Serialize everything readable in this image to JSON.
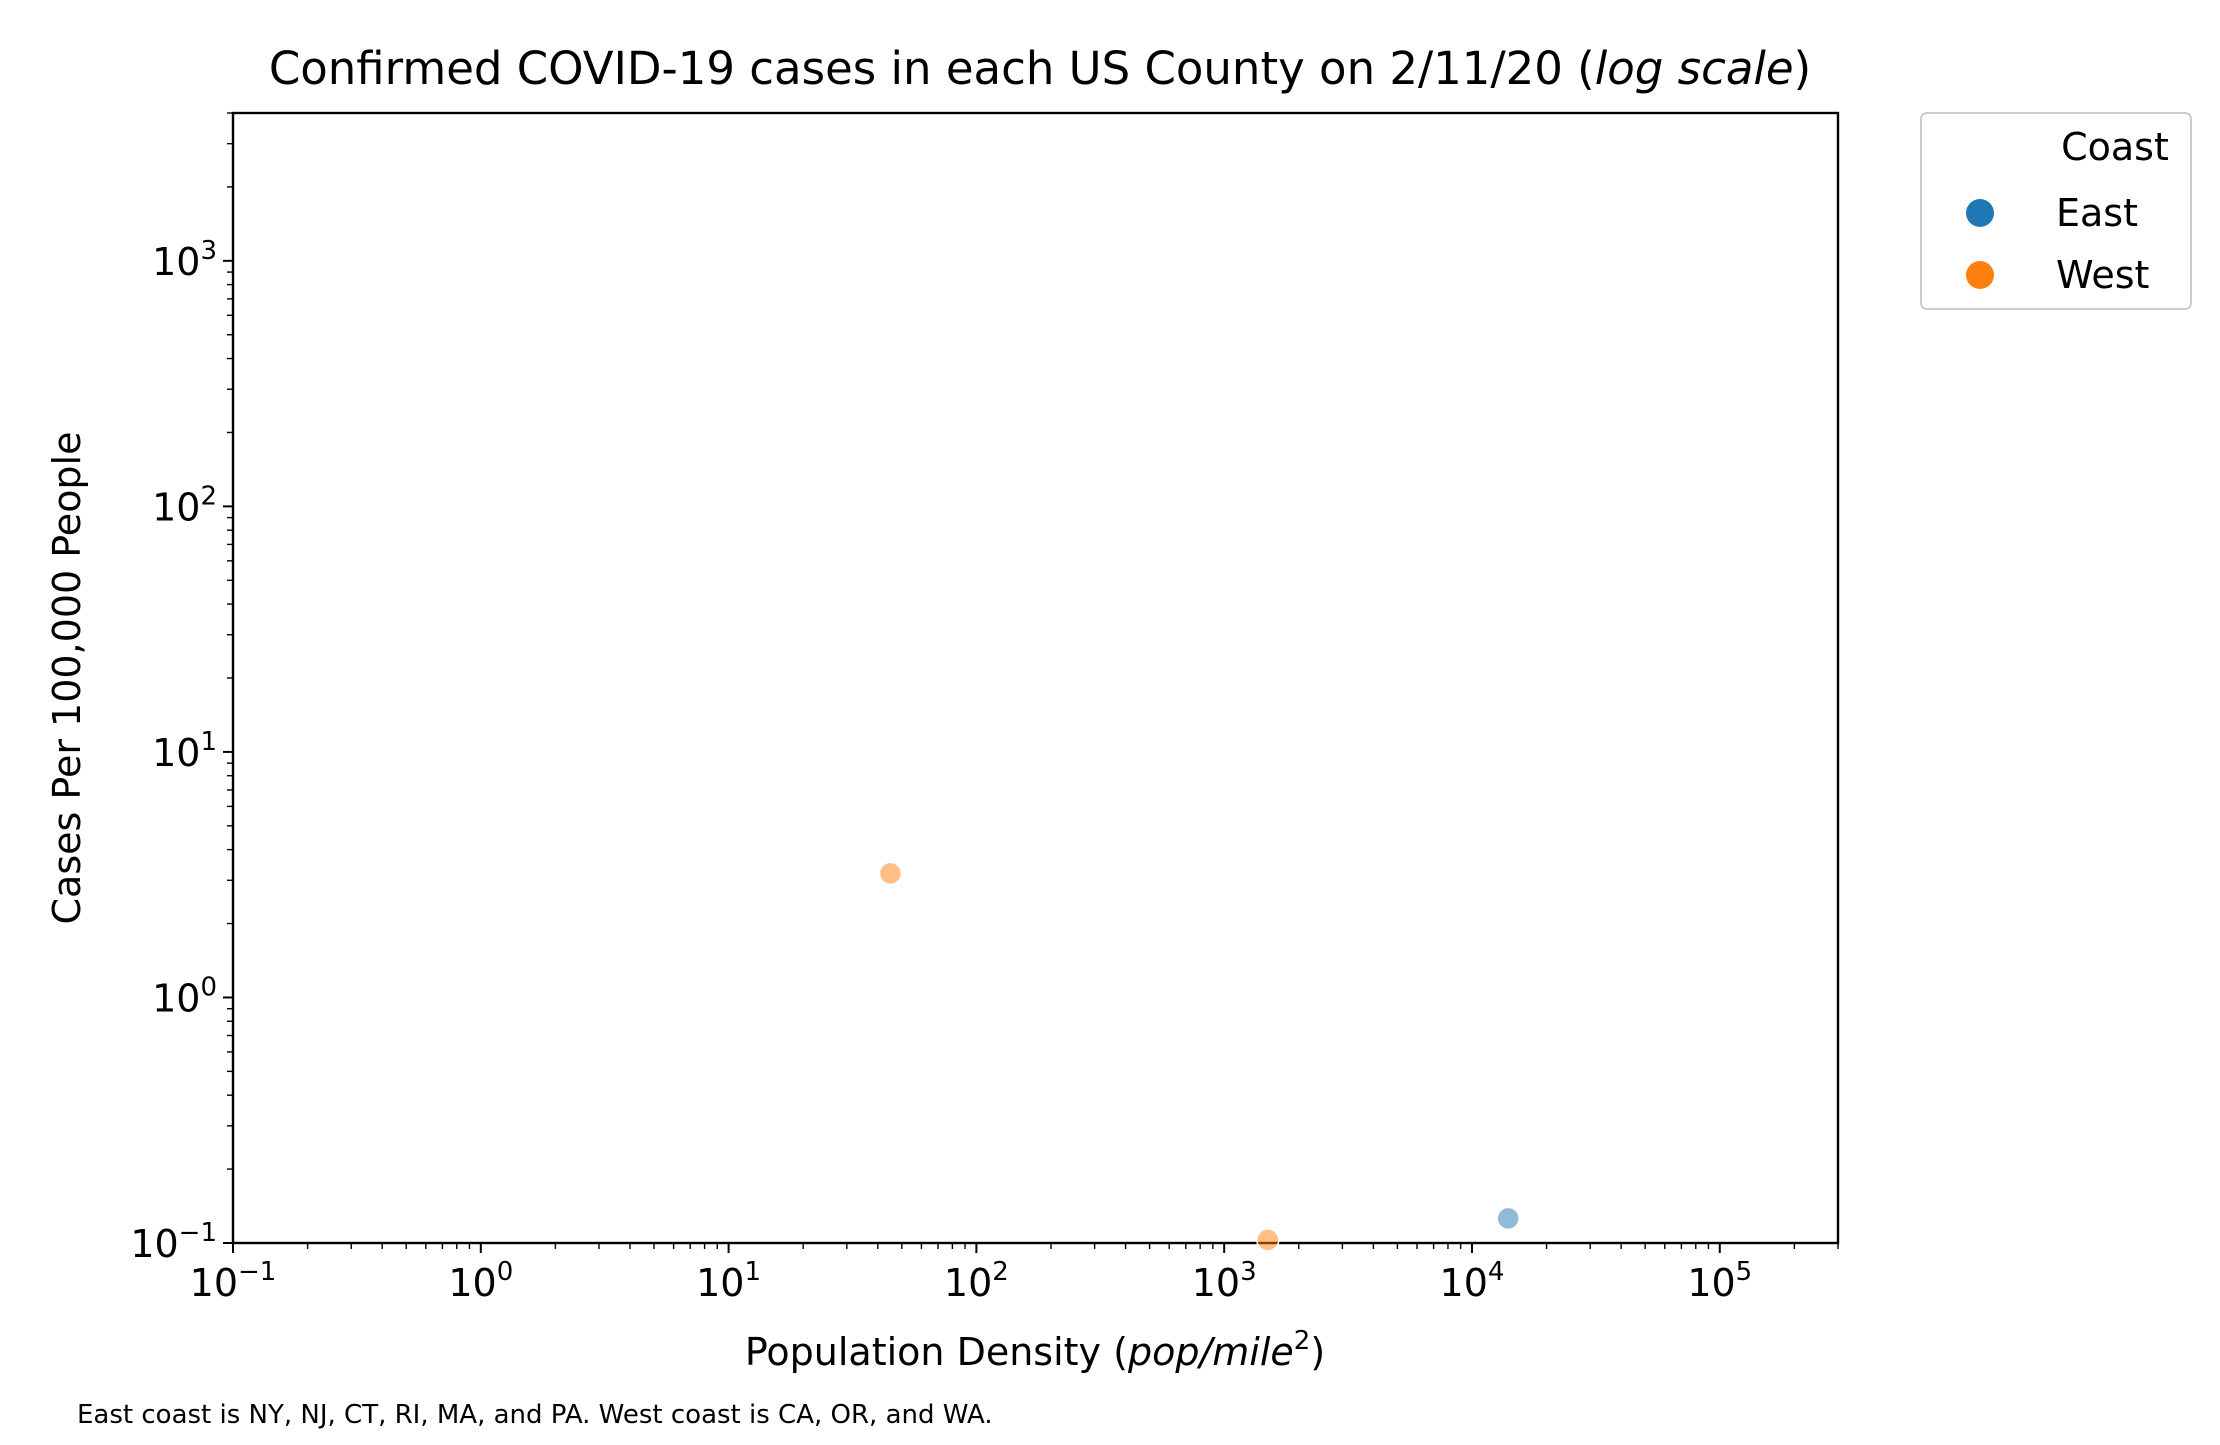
{
  "chart_data": {
    "type": "scatter",
    "title": {
      "prefix": "Confirmed COVID-19 cases in each US County on 2/11/20 (",
      "italic": "log scale",
      "suffix": ")"
    },
    "xlabel": {
      "prefix": "Population Density (",
      "italic": "pop/mile",
      "sup": "2",
      "suffix": ")"
    },
    "ylabel": "Cases Per 100,000 People",
    "xscale": "log",
    "yscale": "log",
    "xlim": [
      0.1,
      300000
    ],
    "ylim": [
      0.1,
      4000
    ],
    "x_ticks": [
      {
        "base": "10",
        "exp": "−1",
        "value": 0.1
      },
      {
        "base": "10",
        "exp": "0",
        "value": 1
      },
      {
        "base": "10",
        "exp": "1",
        "value": 10
      },
      {
        "base": "10",
        "exp": "2",
        "value": 100
      },
      {
        "base": "10",
        "exp": "3",
        "value": 1000
      },
      {
        "base": "10",
        "exp": "4",
        "value": 10000
      },
      {
        "base": "10",
        "exp": "5",
        "value": 100000
      }
    ],
    "y_ticks": [
      {
        "base": "10",
        "exp": "−1",
        "value": 0.1
      },
      {
        "base": "10",
        "exp": "0",
        "value": 1
      },
      {
        "base": "10",
        "exp": "1",
        "value": 10
      },
      {
        "base": "10",
        "exp": "2",
        "value": 100
      },
      {
        "base": "10",
        "exp": "3",
        "value": 1000
      }
    ],
    "grid": false,
    "legend_position": "outside top-right",
    "legend_title": "Coast",
    "series": [
      {
        "name": "East",
        "color": "#1f77b4",
        "points": [
          {
            "x": 14000,
            "y": 0.126
          }
        ]
      },
      {
        "name": "West",
        "color": "#ff7f0e",
        "points": [
          {
            "x": 45,
            "y": 3.2
          },
          {
            "x": 1500,
            "y": 0.103
          }
        ]
      }
    ],
    "marker_opacity": 0.5,
    "footnote": "East coast is NY, NJ, CT, RI, MA, and PA. West coast is CA, OR, and WA."
  }
}
